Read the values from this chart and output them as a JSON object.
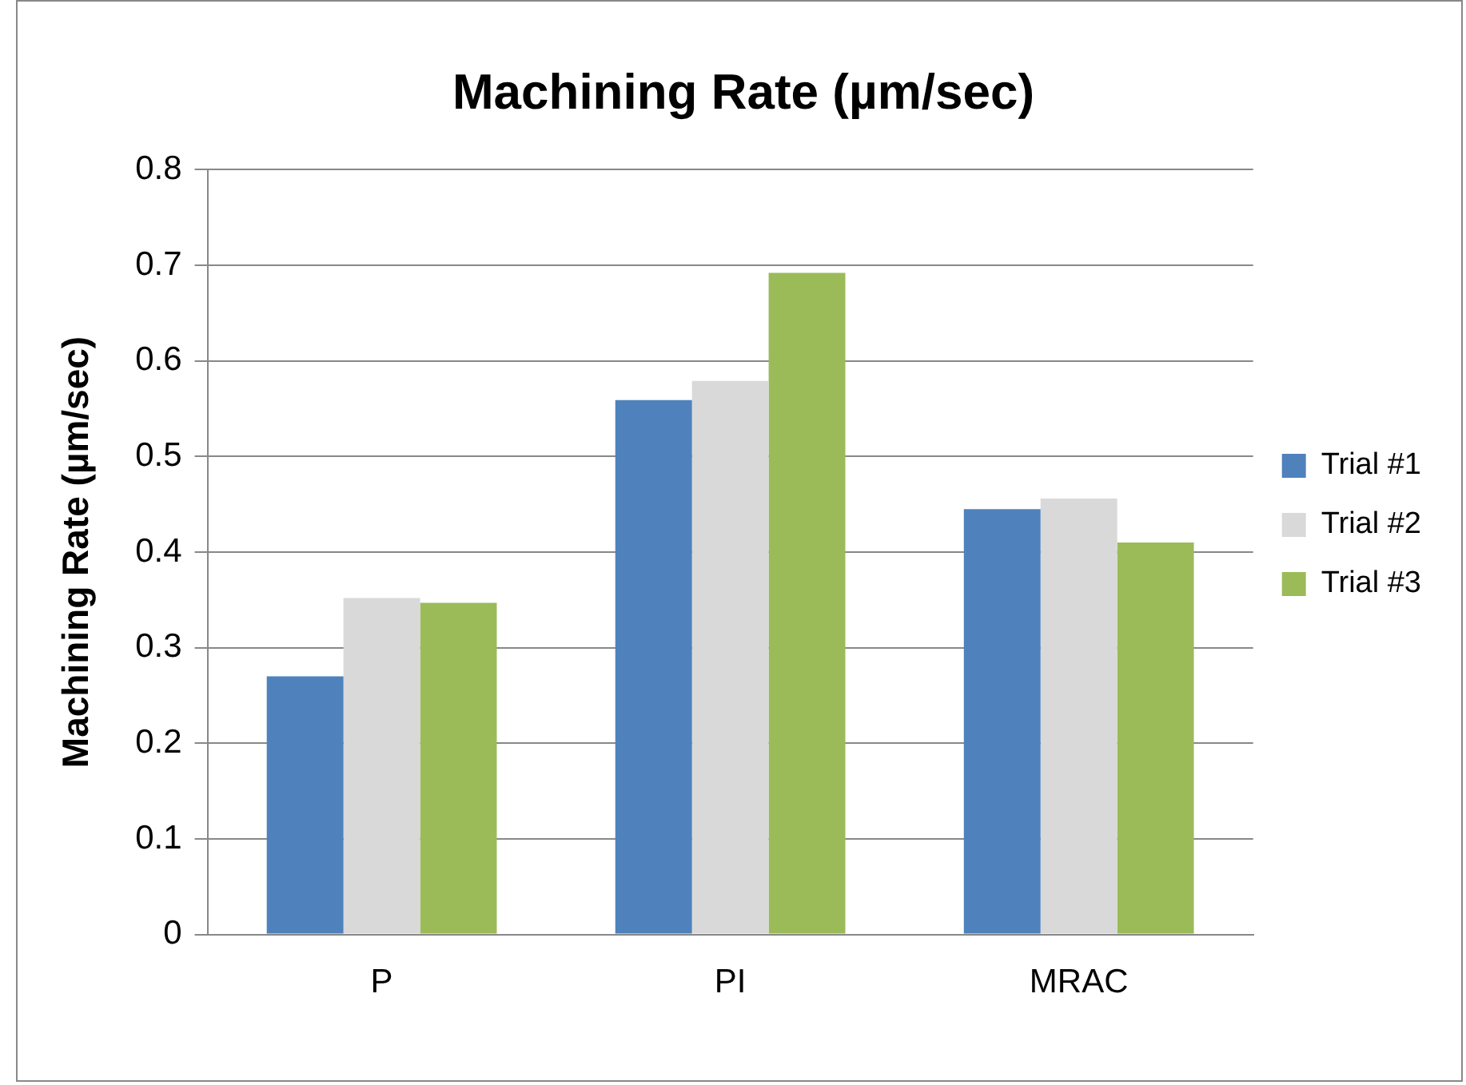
{
  "chart_data": {
    "type": "bar",
    "title": "Machining Rate (µm/sec)",
    "ylabel": "Machining Rate (µm/sec)",
    "categories": [
      "P",
      "PI",
      "MRAC"
    ],
    "series": [
      {
        "name": "Trial #1",
        "color": "#4f81bd",
        "values": [
          0.27,
          0.559,
          0.445
        ]
      },
      {
        "name": "Trial #2",
        "color": "#d9d9d9",
        "values": [
          0.352,
          0.579,
          0.456
        ]
      },
      {
        "name": "Trial #3",
        "color": "#9bbb59",
        "values": [
          0.347,
          0.692,
          0.41
        ]
      }
    ],
    "ylim": [
      0,
      0.8
    ],
    "yticks": [
      0,
      0.1,
      0.2,
      0.3,
      0.4,
      0.5,
      0.6,
      0.7,
      0.8
    ],
    "grid": "y",
    "legend": "right"
  }
}
